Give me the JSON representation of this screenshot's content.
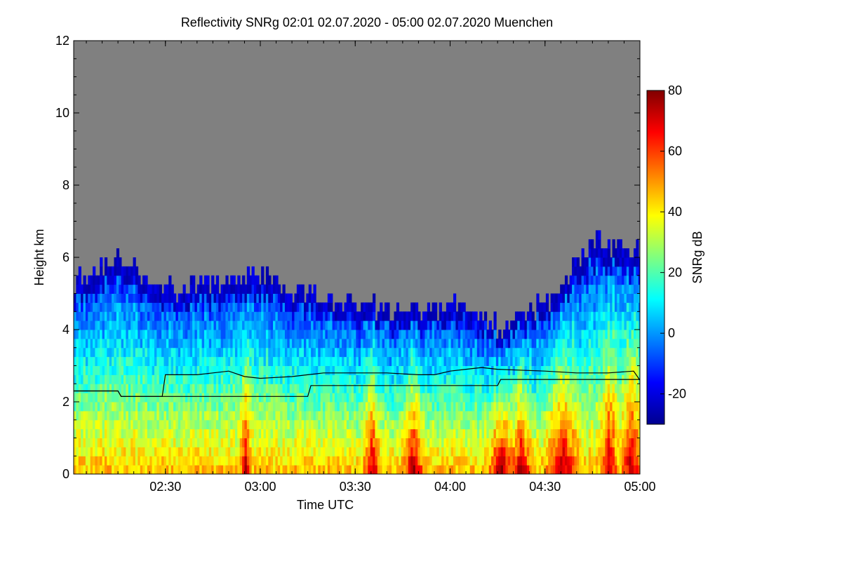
{
  "chart_data": {
    "type": "heatmap",
    "title": "Reflectivity SNRg   02:01 02.07.2020 - 05:00 02.07.2020 Muenchen",
    "xlabel": "Time UTC",
    "ylabel": "Height km",
    "x_ticks": [
      "02:30",
      "03:00",
      "03:30",
      "04:00",
      "04:30",
      "05:00"
    ],
    "y_ticks": [
      0,
      2,
      4,
      6,
      8,
      10,
      12
    ],
    "xlim": [
      "02:01",
      "05:00"
    ],
    "ylim": [
      0,
      12
    ],
    "colorbar": {
      "label": "SNRg dB",
      "range": [
        -30,
        80
      ],
      "ticks": [
        -20,
        0,
        20,
        40,
        60,
        80
      ],
      "colormap": "jet"
    },
    "background_color": "#808080",
    "series": [
      {
        "type": "line",
        "color": "#000000",
        "x": [
          "02:01",
          "02:15",
          "02:16",
          "02:29",
          "02:30",
          "02:40",
          "02:45",
          "02:50",
          "02:55",
          "03:00",
          "03:10",
          "03:15",
          "03:20",
          "03:30",
          "03:40",
          "03:50",
          "03:55",
          "04:00",
          "04:05",
          "04:10",
          "04:15",
          "04:30",
          "04:40",
          "04:50",
          "04:58",
          "05:00"
        ],
        "y": [
          2.3,
          2.3,
          2.15,
          2.15,
          2.75,
          2.75,
          2.8,
          2.85,
          2.7,
          2.65,
          2.7,
          2.75,
          2.8,
          2.8,
          2.8,
          2.75,
          2.75,
          2.85,
          2.9,
          2.95,
          2.9,
          2.85,
          2.8,
          2.8,
          2.85,
          2.6
        ]
      },
      {
        "type": "line",
        "color": "#000000",
        "x": [
          "02:01",
          "02:15",
          "02:16",
          "03:15",
          "03:16",
          "04:15",
          "04:16",
          "05:00"
        ],
        "y": [
          2.3,
          2.3,
          2.15,
          2.15,
          2.45,
          2.45,
          2.62,
          2.62
        ]
      }
    ]
  }
}
